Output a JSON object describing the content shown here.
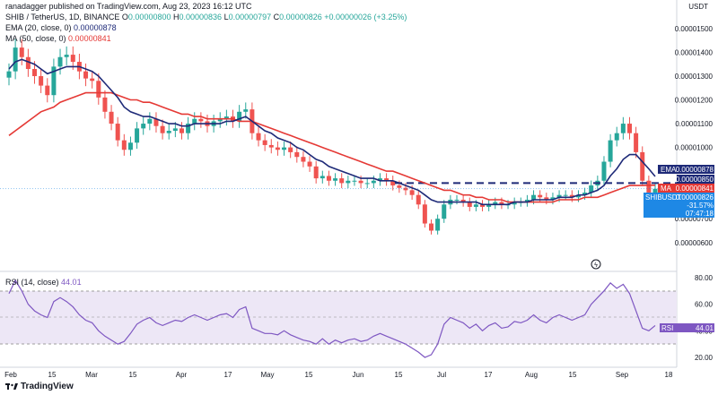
{
  "author": "ranadagger published on TradingView.com, Aug 23, 2023 16:12 UTC",
  "legend": {
    "symbol": "SHIB / TetherUS, 1D, BINANCE",
    "o_label": "O",
    "o_value": "0.00000800",
    "h_label": "H",
    "h_value": "0.00000836",
    "l_label": "L",
    "l_value": "0.00000797",
    "c_label": "C",
    "c_value": "0.00000826",
    "change": "+0.00000026 (+3.25%)",
    "ema_label": "EMA (20, close, 0)",
    "ema_value": "0.00000878",
    "ma_label": "MA (50, close, 0)",
    "ma_value": "0.00000841"
  },
  "currency": "USDT",
  "price_axis": [
    "0.00001500",
    "0.00001400",
    "0.00001300",
    "0.00001200",
    "0.00001100",
    "0.00001000",
    "0.00000700",
    "0.00000600"
  ],
  "tags": {
    "ema": {
      "name": "EMA",
      "value": "0.00000878",
      "color": "#1e2a78"
    },
    "level": {
      "value": "0.00000850",
      "color": "#1e2a78"
    },
    "ma": {
      "name": "MA",
      "value": "0.00000841",
      "color": "#e53935"
    },
    "last": {
      "name": "SHIBUSDT",
      "value": "0.00000826",
      "change": "-31.57%",
      "countdown": "07:47:18",
      "color": "#1e88e5"
    }
  },
  "rsi": {
    "label": "RSI (14, close)",
    "value": "44.01",
    "tag_name": "RSI",
    "axis": [
      "80.00",
      "60.00",
      "40.00",
      "20.00"
    ]
  },
  "time_axis": [
    "Feb",
    "15",
    "Mar",
    "15",
    "Apr",
    "17",
    "May",
    "15",
    "Jun",
    "15",
    "Jul",
    "17",
    "Aug",
    "15",
    "Sep",
    "18"
  ],
  "footer": "TradingView",
  "colors": {
    "up": "#26a69a",
    "down": "#ef5350",
    "ema": "#1e2a78",
    "ma": "#e53935",
    "rsi": "#7e57c2",
    "rsi_band": "#ede7f6",
    "level": "#1e2a78"
  },
  "chart_data": {
    "type": "candlestick",
    "title": "SHIB / TetherUS, 1D, BINANCE",
    "x": [
      "2023-02-01",
      "2023-02-03",
      "2023-02-05",
      "2023-02-07",
      "2023-02-09",
      "2023-02-11",
      "2023-02-13",
      "2023-02-15",
      "2023-02-17",
      "2023-02-19",
      "2023-02-21",
      "2023-02-23",
      "2023-02-25",
      "2023-02-27",
      "2023-03-01",
      "2023-03-03",
      "2023-03-05",
      "2023-03-07",
      "2023-03-09",
      "2023-03-11",
      "2023-03-13",
      "2023-03-15",
      "2023-03-17",
      "2023-03-19",
      "2023-03-21",
      "2023-03-23",
      "2023-03-25",
      "2023-03-27",
      "2023-03-29",
      "2023-03-31",
      "2023-04-02",
      "2023-04-04",
      "2023-04-06",
      "2023-04-08",
      "2023-04-10",
      "2023-04-12",
      "2023-04-14",
      "2023-04-16",
      "2023-04-18",
      "2023-04-20",
      "2023-04-22",
      "2023-04-24",
      "2023-04-26",
      "2023-04-28",
      "2023-04-30",
      "2023-05-02",
      "2023-05-04",
      "2023-05-06",
      "2023-05-08",
      "2023-05-10",
      "2023-05-12",
      "2023-05-14",
      "2023-05-16",
      "2023-05-18",
      "2023-05-20",
      "2023-05-22",
      "2023-05-24",
      "2023-05-26",
      "2023-05-28",
      "2023-05-30",
      "2023-06-01",
      "2023-06-03",
      "2023-06-05",
      "2023-06-07",
      "2023-06-09",
      "2023-06-11",
      "2023-06-13",
      "2023-06-15",
      "2023-06-17",
      "2023-06-19",
      "2023-06-21",
      "2023-06-23",
      "2023-06-25",
      "2023-06-27",
      "2023-06-29",
      "2023-07-01",
      "2023-07-03",
      "2023-07-05",
      "2023-07-07",
      "2023-07-09",
      "2023-07-11",
      "2023-07-13",
      "2023-07-15",
      "2023-07-17",
      "2023-07-19",
      "2023-07-21",
      "2023-07-23",
      "2023-07-25",
      "2023-07-27",
      "2023-07-29",
      "2023-07-31",
      "2023-08-02",
      "2023-08-04",
      "2023-08-06",
      "2023-08-08",
      "2023-08-10",
      "2023-08-12",
      "2023-08-14",
      "2023-08-16",
      "2023-08-18",
      "2023-08-20",
      "2023-08-22"
    ],
    "close": [
      1.32e-05,
      1.42e-05,
      1.38e-05,
      1.33e-05,
      1.3e-05,
      1.26e-05,
      1.22e-05,
      1.34e-05,
      1.38e-05,
      1.39e-05,
      1.36e-05,
      1.32e-05,
      1.29e-05,
      1.28e-05,
      1.21e-05,
      1.15e-05,
      1.1e-05,
      1.03e-05,
      9.9e-06,
      1.02e-05,
      1.08e-05,
      1.1e-05,
      1.12e-05,
      1.09e-05,
      1.06e-05,
      1.07e-05,
      1.08e-05,
      1.06e-05,
      1.1e-05,
      1.12e-05,
      1.11e-05,
      1.09e-05,
      1.11e-05,
      1.12e-05,
      1.13e-05,
      1.11e-05,
      1.15e-05,
      1.16e-05,
      1.06e-05,
      1.03e-05,
      1.01e-05,
      1e-05,
      9.9e-06,
      1e-05,
      9.8e-06,
      9.6e-06,
      9.4e-06,
      9.2e-06,
      8.7e-06,
      8.8e-06,
      8.6e-06,
      8.7e-06,
      8.5e-06,
      8.6e-06,
      8.6e-06,
      8.5e-06,
      8.5e-06,
      8.6e-06,
      8.7e-06,
      8.6e-06,
      8.4e-06,
      8.3e-06,
      8.2e-06,
      8e-06,
      7.6e-06,
      6.8e-06,
      6.5e-06,
      7e-06,
      7.6e-06,
      7.8e-06,
      7.8e-06,
      7.7e-06,
      7.5e-06,
      7.6e-06,
      7.5e-06,
      7.6e-06,
      7.7e-06,
      7.6e-06,
      7.6e-06,
      7.7e-06,
      7.7e-06,
      7.8e-06,
      8e-06,
      7.9e-06,
      7.8e-06,
      7.9e-06,
      8e-06,
      8e-06,
      7.9e-06,
      8e-06,
      8.1e-06,
      8.4e-06,
      8.6e-06,
      9.4e-06,
      1.03e-05,
      1.06e-05,
      1.1e-05,
      1.06e-05,
      9.8e-06,
      8.6e-06,
      8e-06,
      8.26e-06
    ],
    "ema_20": [
      1.33e-05,
      1.36e-05,
      1.37e-05,
      1.36e-05,
      1.35e-05,
      1.33e-05,
      1.31e-05,
      1.32e-05,
      1.33e-05,
      1.34e-05,
      1.34e-05,
      1.34e-05,
      1.33e-05,
      1.32e-05,
      1.3e-05,
      1.27e-05,
      1.24e-05,
      1.21e-05,
      1.17e-05,
      1.15e-05,
      1.14e-05,
      1.13e-05,
      1.13e-05,
      1.12e-05,
      1.11e-05,
      1.1e-05,
      1.1e-05,
      1.09e-05,
      1.09e-05,
      1.1e-05,
      1.1e-05,
      1.1e-05,
      1.1e-05,
      1.1e-05,
      1.11e-05,
      1.11e-05,
      1.12e-05,
      1.13e-05,
      1.11e-05,
      1.09e-05,
      1.07e-05,
      1.06e-05,
      1.04e-05,
      1.03e-05,
      1.02e-05,
      1e-05,
      9.9e-06,
      9.7e-06,
      9.5e-06,
      9.4e-06,
      9.2e-06,
      9.1e-06,
      9e-06,
      8.9e-06,
      8.8e-06,
      8.7e-06,
      8.7e-06,
      8.7e-06,
      8.6e-06,
      8.6e-06,
      8.6e-06,
      8.5e-06,
      8.4e-06,
      8.3e-06,
      8.2e-06,
      8e-06,
      7.8e-06,
      7.7e-06,
      7.7e-06,
      7.7e-06,
      7.7e-06,
      7.7e-06,
      7.7e-06,
      7.7e-06,
      7.6e-06,
      7.6e-06,
      7.6e-06,
      7.6e-06,
      7.6e-06,
      7.7e-06,
      7.7e-06,
      7.7e-06,
      7.8e-06,
      7.8e-06,
      7.8e-06,
      7.8e-06,
      7.9e-06,
      7.9e-06,
      7.9e-06,
      8e-06,
      8e-06,
      8.1e-06,
      8.2e-06,
      8.4e-06,
      8.8e-06,
      9.1e-06,
      9.5e-06,
      9.7e-06,
      9.7e-06,
      9.4e-06,
      9.1e-06,
      8.78e-06
    ],
    "ma_50": [
      1.05e-05,
      1.07e-05,
      1.09e-05,
      1.11e-05,
      1.13e-05,
      1.15e-05,
      1.16e-05,
      1.17e-05,
      1.19e-05,
      1.2e-05,
      1.21e-05,
      1.22e-05,
      1.23e-05,
      1.23e-05,
      1.23e-05,
      1.23e-05,
      1.23e-05,
      1.22e-05,
      1.21e-05,
      1.2e-05,
      1.2e-05,
      1.19e-05,
      1.19e-05,
      1.18e-05,
      1.17e-05,
      1.16e-05,
      1.15e-05,
      1.14e-05,
      1.14e-05,
      1.13e-05,
      1.13e-05,
      1.12e-05,
      1.12e-05,
      1.12e-05,
      1.12e-05,
      1.12e-05,
      1.11e-05,
      1.11e-05,
      1.11e-05,
      1.1e-05,
      1.09e-05,
      1.08e-05,
      1.07e-05,
      1.06e-05,
      1.05e-05,
      1.04e-05,
      1.03e-05,
      1.02e-05,
      1.01e-05,
      1e-05,
      9.9e-06,
      9.8e-06,
      9.7e-06,
      9.6e-06,
      9.5e-06,
      9.4e-06,
      9.3e-06,
      9.2e-06,
      9.1e-06,
      9e-06,
      9e-06,
      8.9e-06,
      8.8e-06,
      8.7e-06,
      8.6e-06,
      8.5e-06,
      8.4e-06,
      8.3e-06,
      8.2e-06,
      8.2e-06,
      8.1e-06,
      8e-06,
      8e-06,
      7.9e-06,
      7.9e-06,
      7.8e-06,
      7.8e-06,
      7.8e-06,
      7.7e-06,
      7.7e-06,
      7.7e-06,
      7.7e-06,
      7.7e-06,
      7.7e-06,
      7.7e-06,
      7.7e-06,
      7.8e-06,
      7.8e-06,
      7.8e-06,
      7.8e-06,
      7.9e-06,
      7.9e-06,
      7.9e-06,
      8e-06,
      8.1e-06,
      8.2e-06,
      8.3e-06,
      8.4e-06,
      8.4e-06,
      8.4e-06,
      8.41e-06,
      8.41e-06
    ],
    "horizontal_level": 8.5e-06,
    "rsi_14": [
      68,
      78,
      70,
      60,
      55,
      52,
      50,
      62,
      65,
      62,
      58,
      52,
      48,
      46,
      40,
      36,
      33,
      30,
      32,
      38,
      45,
      48,
      50,
      46,
      44,
      46,
      48,
      47,
      50,
      52,
      50,
      48,
      50,
      52,
      53,
      50,
      56,
      58,
      42,
      40,
      38,
      38,
      37,
      40,
      37,
      35,
      33,
      32,
      30,
      34,
      30,
      33,
      31,
      33,
      34,
      32,
      33,
      36,
      38,
      36,
      34,
      32,
      30,
      27,
      24,
      20,
      22,
      30,
      45,
      50,
      48,
      46,
      42,
      45,
      40,
      44,
      46,
      42,
      43,
      47,
      46,
      48,
      52,
      48,
      46,
      50,
      52,
      50,
      48,
      50,
      52,
      60,
      65,
      70,
      76,
      72,
      75,
      68,
      55,
      42,
      40,
      44.01
    ],
    "ylim": [
      5.2e-06,
      1.59e-05
    ]
  }
}
